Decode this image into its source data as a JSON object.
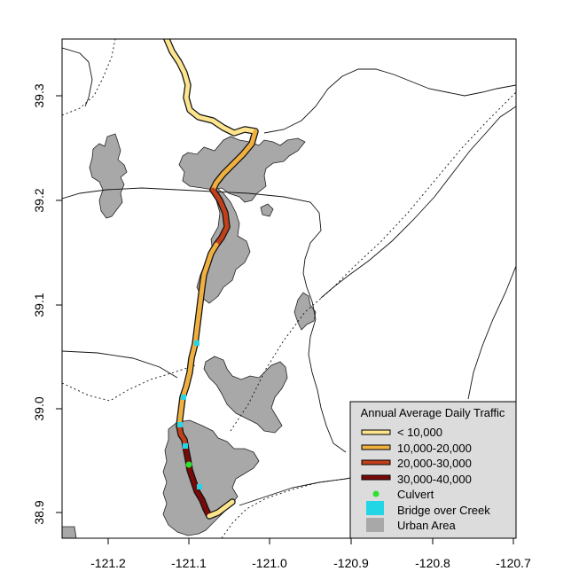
{
  "axes": {
    "x_ticks": [
      "-121.2",
      "-121.1",
      "-121.0",
      "-120.9",
      "-120.8",
      "-120.7"
    ],
    "y_ticks": [
      "38.9",
      "39.0",
      "39.1",
      "39.2",
      "39.3"
    ]
  },
  "colors": {
    "urban": "#a8a8a8",
    "lt10k": "#fde58e",
    "10k_20k": "#f0b040",
    "20k_30k": "#c0401c",
    "30k_40k": "#7a0a08",
    "culvert": "#2ee02e",
    "bridge": "#22d6e6",
    "legend_bg": "#dcdcdc"
  },
  "legend": {
    "title": "Annual Average Daily Traffic",
    "items": [
      {
        "label": "< 10,000",
        "kind": "line",
        "color": "#fde58e"
      },
      {
        "label": "10,000-20,000",
        "kind": "line",
        "color": "#f0b040"
      },
      {
        "label": "20,000-30,000",
        "kind": "line",
        "color": "#c0401c"
      },
      {
        "label": "30,000-40,000",
        "kind": "line",
        "color": "#7a0a08"
      },
      {
        "label": "Culvert",
        "kind": "dot",
        "color": "#2ee02e"
      },
      {
        "label": "Bridge over Creek",
        "kind": "square",
        "color": "#22d6e6"
      },
      {
        "label": "Urban Area",
        "kind": "square",
        "color": "#a8a8a8"
      }
    ]
  }
}
